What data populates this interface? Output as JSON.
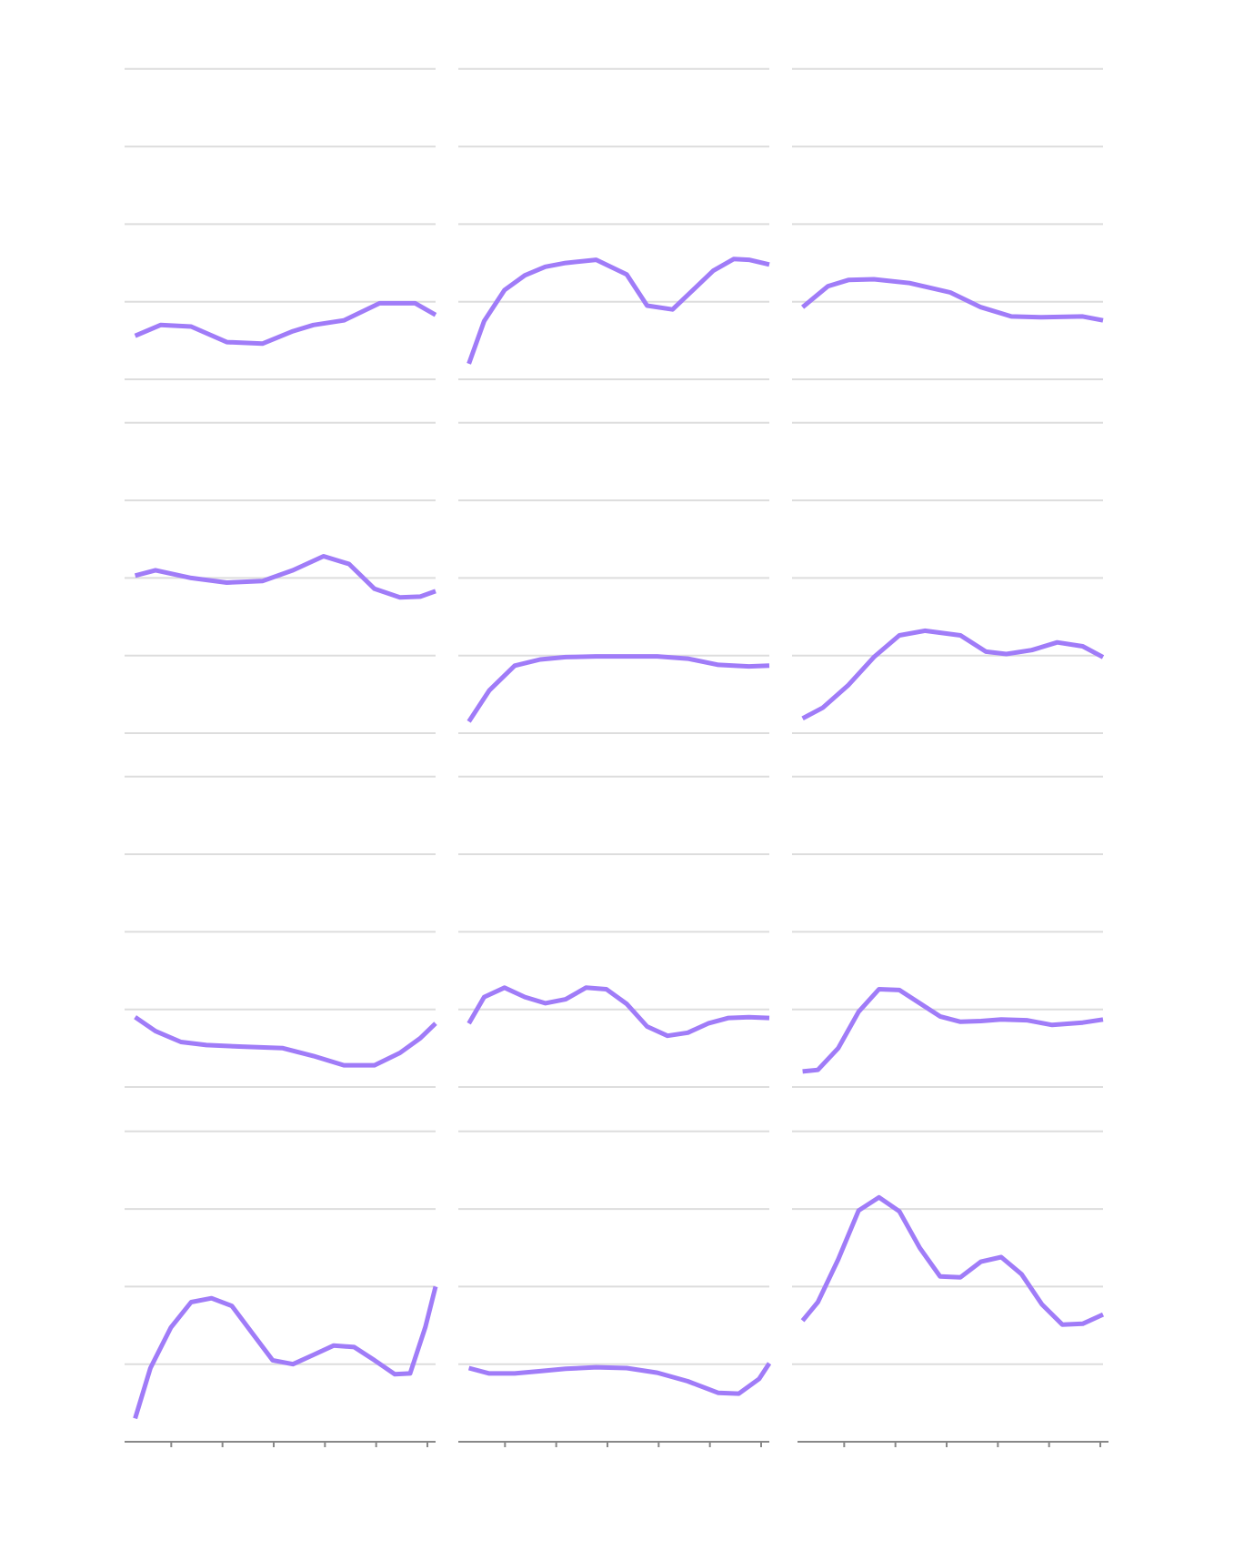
{
  "chart_data": {
    "type": "line",
    "layout": "small-multiples",
    "rows": 4,
    "cols": 3,
    "line_color": "#a07cf8",
    "grid_color": "#dddddd",
    "axis_color": "#888888",
    "grid": true,
    "x_ticks": [
      1,
      2,
      3,
      4,
      5,
      6
    ],
    "ylim": [
      0,
      4
    ],
    "y_gridlines": [
      0,
      1,
      2,
      3,
      4
    ],
    "panels": [
      {
        "x": [
          0.1,
          0.6,
          1.2,
          1.9,
          2.6,
          3.2,
          3.6,
          4.2,
          4.9,
          5.6,
          6.0
        ],
        "y": [
          0.56,
          0.7,
          0.68,
          0.48,
          0.46,
          0.62,
          0.7,
          0.76,
          0.98,
          0.98,
          0.83
        ]
      },
      {
        "x": [
          0.1,
          0.4,
          0.8,
          1.2,
          1.6,
          2.0,
          2.6,
          3.2,
          3.6,
          4.1,
          4.5,
          4.9,
          5.3,
          5.6,
          6.0
        ],
        "y": [
          0.2,
          0.75,
          1.15,
          1.34,
          1.45,
          1.5,
          1.54,
          1.35,
          0.95,
          0.9,
          1.15,
          1.4,
          1.55,
          1.54,
          1.48
        ]
      },
      {
        "x": [
          0.1,
          0.6,
          1.0,
          1.5,
          2.2,
          3.0,
          3.6,
          4.2,
          4.8,
          5.6,
          6.0
        ],
        "y": [
          0.93,
          1.2,
          1.28,
          1.29,
          1.24,
          1.12,
          0.93,
          0.81,
          0.8,
          0.81,
          0.76
        ]
      },
      {
        "x": [
          0.1,
          0.5,
          1.2,
          1.9,
          2.6,
          3.2,
          3.8,
          4.3,
          4.8,
          5.3,
          5.7,
          6.0
        ],
        "y": [
          2.03,
          2.1,
          2.0,
          1.94,
          1.96,
          2.1,
          2.28,
          2.18,
          1.86,
          1.75,
          1.76,
          1.83
        ]
      },
      {
        "x": [
          0.1,
          0.5,
          1.0,
          1.5,
          2.0,
          2.6,
          3.2,
          3.8,
          4.4,
          5.0,
          5.6,
          6.0
        ],
        "y": [
          0.15,
          0.55,
          0.87,
          0.95,
          0.98,
          0.99,
          0.99,
          0.99,
          0.96,
          0.88,
          0.86,
          0.87
        ]
      },
      {
        "x": [
          0.1,
          0.5,
          1.0,
          1.5,
          2.0,
          2.5,
          3.2,
          3.7,
          4.1,
          4.6,
          5.1,
          5.6,
          6.0
        ],
        "y": [
          0.19,
          0.33,
          0.62,
          0.98,
          1.26,
          1.32,
          1.26,
          1.05,
          1.02,
          1.07,
          1.17,
          1.12,
          0.98
        ]
      },
      {
        "x": [
          0.1,
          0.5,
          1.0,
          1.5,
          2.2,
          3.0,
          3.6,
          4.2,
          4.8,
          5.3,
          5.7,
          6.0
        ],
        "y": [
          0.9,
          0.72,
          0.58,
          0.54,
          0.52,
          0.5,
          0.4,
          0.28,
          0.28,
          0.44,
          0.63,
          0.82
        ]
      },
      {
        "x": [
          0.1,
          0.4,
          0.8,
          1.2,
          1.6,
          2.0,
          2.4,
          2.8,
          3.2,
          3.6,
          4.0,
          4.4,
          4.8,
          5.2,
          5.6,
          6.0
        ],
        "y": [
          0.82,
          1.16,
          1.28,
          1.16,
          1.08,
          1.13,
          1.28,
          1.26,
          1.07,
          0.78,
          0.66,
          0.7,
          0.82,
          0.89,
          0.9,
          0.89
        ]
      },
      {
        "x": [
          0.1,
          0.4,
          0.8,
          1.2,
          1.6,
          2.0,
          2.4,
          2.8,
          3.2,
          3.6,
          4.0,
          4.5,
          5.0,
          5.6,
          6.0
        ],
        "y": [
          0.2,
          0.22,
          0.5,
          0.97,
          1.26,
          1.25,
          1.08,
          0.91,
          0.84,
          0.85,
          0.87,
          0.86,
          0.8,
          0.83,
          0.87
        ]
      },
      {
        "x": [
          0.1,
          0.4,
          0.8,
          1.2,
          1.6,
          2.0,
          2.4,
          2.8,
          3.2,
          3.6,
          4.0,
          4.4,
          4.8,
          5.2,
          5.5,
          5.8,
          6.0
        ],
        "y": [
          0.3,
          0.95,
          1.47,
          1.8,
          1.85,
          1.75,
          1.4,
          1.05,
          1.0,
          1.12,
          1.24,
          1.22,
          1.05,
          0.87,
          0.88,
          1.48,
          2.0
        ]
      },
      {
        "x": [
          0.1,
          0.5,
          1.0,
          1.5,
          2.0,
          2.6,
          3.2,
          3.8,
          4.4,
          5.0,
          5.4,
          5.8,
          6.0
        ],
        "y": [
          0.95,
          0.88,
          0.88,
          0.91,
          0.94,
          0.96,
          0.95,
          0.89,
          0.78,
          0.63,
          0.62,
          0.81,
          1.01
        ]
      },
      {
        "x": [
          0.1,
          0.4,
          0.8,
          1.2,
          1.6,
          2.0,
          2.4,
          2.8,
          3.2,
          3.6,
          4.0,
          4.4,
          4.8,
          5.2,
          5.6,
          6.0
        ],
        "y": [
          1.56,
          1.8,
          2.35,
          2.98,
          3.15,
          2.97,
          2.5,
          2.13,
          2.12,
          2.32,
          2.38,
          2.16,
          1.77,
          1.51,
          1.52,
          1.64
        ]
      }
    ]
  }
}
